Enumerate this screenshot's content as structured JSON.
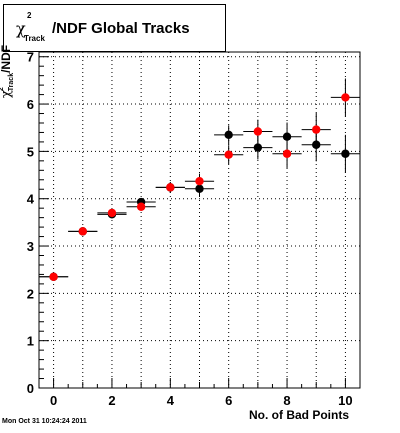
{
  "title": {
    "prefix": "χ",
    "sup": "2",
    "sub": "Track",
    "rest": "/NDF  Global Tracks"
  },
  "ylabel": {
    "chi": "χ",
    "sup": "2",
    "sub": "Track",
    "rest": "/NDF"
  },
  "xlabel": "No. of Bad Points",
  "datestamp": "Mon Oct 31 10:24:24 2011",
  "colors": {
    "series_a": "#000000",
    "series_b": "#ff0000",
    "grid": "#000000"
  },
  "chart_data": {
    "type": "scatter",
    "title": "χ2Track/NDF  Global Tracks",
    "xlabel": "No. of Bad Points",
    "ylabel": "χ2Track/NDF",
    "xlim": [
      -0.5,
      10.5
    ],
    "ylim": [
      0,
      7.1
    ],
    "xticks": [
      0,
      2,
      4,
      6,
      8,
      10
    ],
    "yticks": [
      0,
      1,
      2,
      3,
      4,
      5,
      6,
      7
    ],
    "grid": true,
    "series": [
      {
        "color": "#000000",
        "x": [
          0,
          1,
          2,
          3,
          4,
          5,
          6,
          7,
          8,
          9,
          10
        ],
        "y": [
          2.35,
          3.31,
          3.67,
          3.93,
          4.24,
          4.21,
          5.35,
          5.08,
          5.31,
          5.14,
          4.95
        ],
        "yerr": [
          0.02,
          0.03,
          0.06,
          0.08,
          0.11,
          0.16,
          0.2,
          0.25,
          0.3,
          0.35,
          0.4
        ],
        "xerr": 0.5
      },
      {
        "color": "#ff0000",
        "x": [
          0,
          1,
          2,
          3,
          4,
          5,
          6,
          7,
          8,
          9,
          10
        ],
        "y": [
          2.35,
          3.31,
          3.7,
          3.83,
          4.24,
          4.37,
          4.93,
          5.42,
          4.95,
          5.46,
          6.14
        ],
        "yerr": [
          0.02,
          0.03,
          0.06,
          0.08,
          0.11,
          0.16,
          0.2,
          0.25,
          0.3,
          0.35,
          0.4
        ],
        "xerr": 0.5
      }
    ]
  }
}
